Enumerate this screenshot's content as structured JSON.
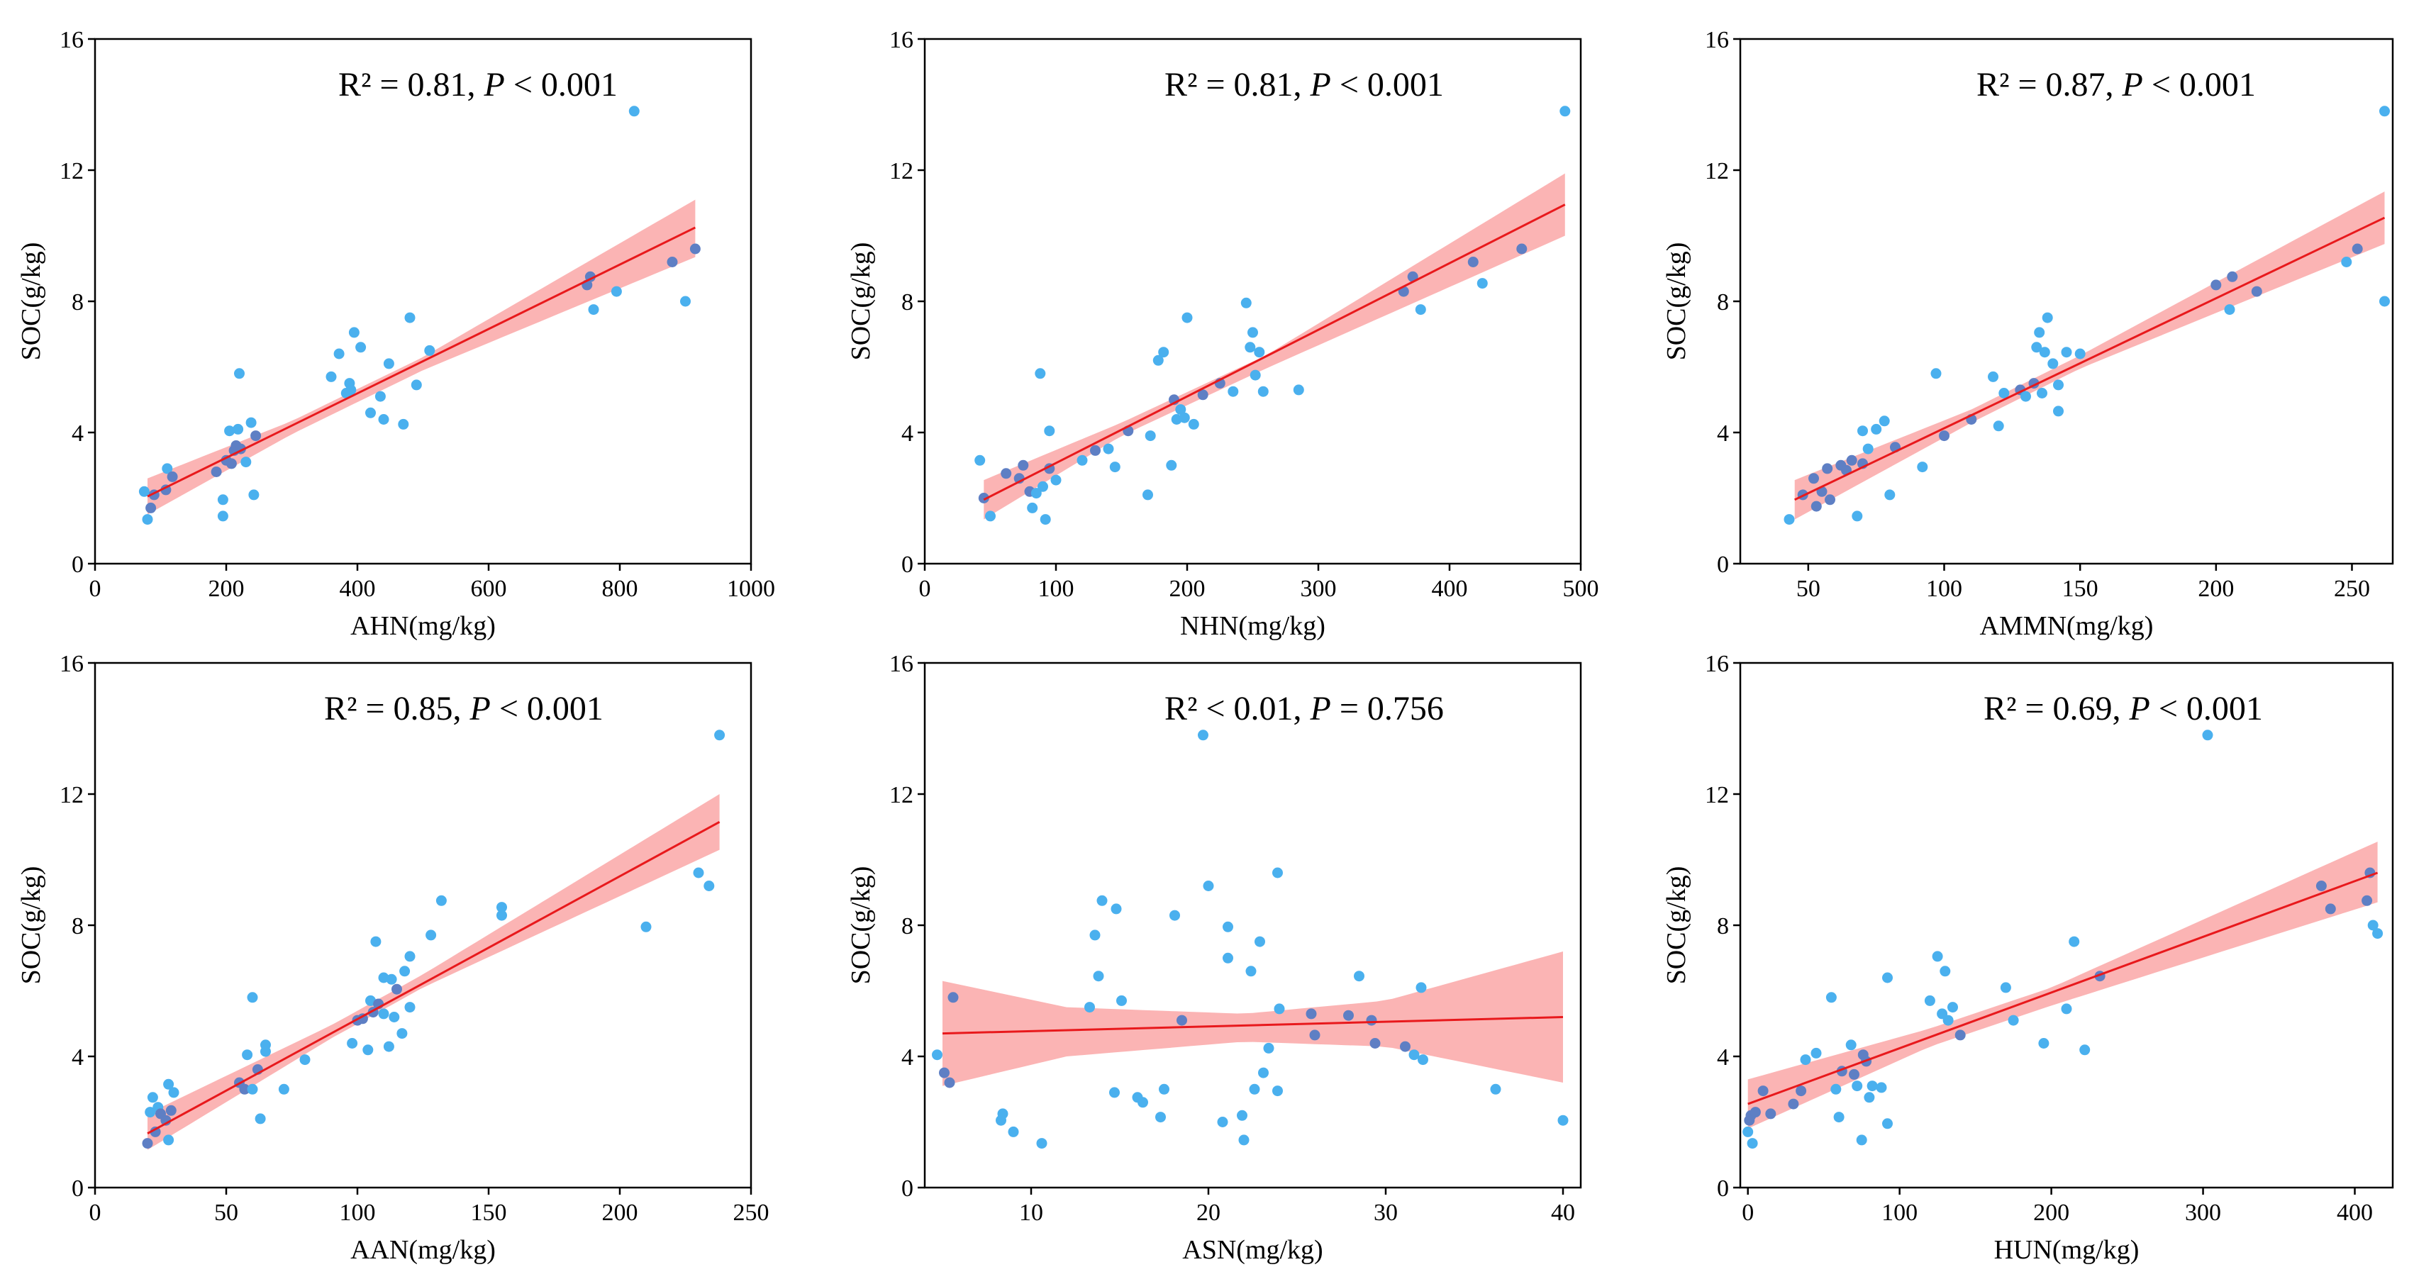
{
  "figure": {
    "y_label": "SOC(g/kg)",
    "y_ticks": [
      0,
      4,
      8,
      12,
      16
    ]
  },
  "colors": {
    "points": "#4ab0ee",
    "points_overlap": "#5e7fc4",
    "fit_line": "#e8191c",
    "confidence_band": "#fa9b9b"
  },
  "chart_data": [
    {
      "type": "scatter",
      "xlabel": "AHN(mg/kg)",
      "ylabel": "SOC(g/kg)",
      "xlim": [
        0,
        1000
      ],
      "ylim": [
        0,
        16
      ],
      "xticks": [
        0,
        200,
        400,
        600,
        800,
        1000
      ],
      "annotation": {
        "r2": "R² = 0.81, ",
        "p_label": "P",
        "p_value": " < 0.001"
      },
      "fit": {
        "x": [
          80,
          915
        ],
        "y": [
          2.05,
          10.25
        ]
      },
      "band": {
        "x": [
          80,
          300,
          500,
          915
        ],
        "lower": [
          1.5,
          3.95,
          5.9,
          9.35
        ],
        "upper": [
          2.6,
          4.35,
          6.3,
          11.1
        ]
      },
      "points": [
        [
          75,
          2.2
        ],
        [
          80,
          1.35
        ],
        [
          85,
          1.7
        ],
        [
          90,
          2.1
        ],
        [
          108,
          2.25
        ],
        [
          110,
          2.9
        ],
        [
          118,
          2.65
        ],
        [
          185,
          2.8
        ],
        [
          195,
          1.95
        ],
        [
          195,
          1.45
        ],
        [
          200,
          3.15
        ],
        [
          205,
          4.05
        ],
        [
          208,
          3.05
        ],
        [
          212,
          3.45
        ],
        [
          215,
          3.6
        ],
        [
          218,
          4.1
        ],
        [
          220,
          5.8
        ],
        [
          222,
          3.5
        ],
        [
          230,
          3.1
        ],
        [
          238,
          4.3
        ],
        [
          242,
          2.1
        ],
        [
          245,
          3.9
        ],
        [
          360,
          5.7
        ],
        [
          372,
          6.4
        ],
        [
          383,
          5.2
        ],
        [
          388,
          5.5
        ],
        [
          390,
          5.3
        ],
        [
          395,
          7.05
        ],
        [
          405,
          6.6
        ],
        [
          420,
          4.6
        ],
        [
          435,
          5.1
        ],
        [
          440,
          4.4
        ],
        [
          448,
          6.1
        ],
        [
          470,
          4.25
        ],
        [
          480,
          7.5
        ],
        [
          490,
          5.45
        ],
        [
          510,
          6.5
        ],
        [
          750,
          8.5
        ],
        [
          755,
          8.75
        ],
        [
          760,
          7.75
        ],
        [
          795,
          8.3
        ],
        [
          822,
          13.8
        ],
        [
          880,
          9.2
        ],
        [
          900,
          8.0
        ],
        [
          915,
          9.6
        ]
      ]
    },
    {
      "type": "scatter",
      "xlabel": "NHN(mg/kg)",
      "ylabel": "SOC(g/kg)",
      "xlim": [
        0,
        500
      ],
      "ylim": [
        0,
        16
      ],
      "xticks": [
        0,
        100,
        200,
        300,
        400,
        500
      ],
      "annotation": {
        "r2": "R² = 0.81, ",
        "p_label": "P",
        "p_value": " < 0.001"
      },
      "fit": {
        "x": [
          45,
          488
        ],
        "y": [
          1.95,
          10.95
        ]
      },
      "band": {
        "x": [
          45,
          150,
          260,
          488
        ],
        "lower": [
          1.35,
          3.9,
          5.95,
          10.0
        ],
        "upper": [
          2.55,
          4.3,
          6.35,
          11.9
        ]
      },
      "points": [
        [
          42,
          3.15
        ],
        [
          45,
          2.0
        ],
        [
          50,
          1.45
        ],
        [
          62,
          2.75
        ],
        [
          72,
          2.6
        ],
        [
          75,
          3.0
        ],
        [
          80,
          2.2
        ],
        [
          82,
          1.7
        ],
        [
          85,
          2.15
        ],
        [
          88,
          5.8
        ],
        [
          90,
          2.35
        ],
        [
          92,
          1.35
        ],
        [
          95,
          4.05
        ],
        [
          95,
          2.9
        ],
        [
          100,
          2.55
        ],
        [
          120,
          3.15
        ],
        [
          130,
          3.45
        ],
        [
          140,
          3.5
        ],
        [
          145,
          2.95
        ],
        [
          155,
          4.05
        ],
        [
          170,
          2.1
        ],
        [
          172,
          3.9
        ],
        [
          178,
          6.2
        ],
        [
          182,
          6.45
        ],
        [
          188,
          3.0
        ],
        [
          190,
          5.0
        ],
        [
          192,
          4.4
        ],
        [
          195,
          4.7
        ],
        [
          198,
          4.45
        ],
        [
          200,
          7.5
        ],
        [
          205,
          4.25
        ],
        [
          212,
          5.15
        ],
        [
          225,
          5.5
        ],
        [
          235,
          5.25
        ],
        [
          245,
          7.95
        ],
        [
          248,
          6.6
        ],
        [
          250,
          7.05
        ],
        [
          252,
          5.75
        ],
        [
          255,
          6.45
        ],
        [
          258,
          5.25
        ],
        [
          285,
          5.3
        ],
        [
          365,
          8.3
        ],
        [
          372,
          8.75
        ],
        [
          378,
          7.75
        ],
        [
          418,
          9.2
        ],
        [
          425,
          8.55
        ],
        [
          455,
          9.6
        ],
        [
          488,
          13.8
        ]
      ]
    },
    {
      "type": "scatter",
      "xlabel": "AMMN(mg/kg)",
      "ylabel": "SOC(g/kg)",
      "xlim": [
        25,
        265
      ],
      "ylim": [
        0,
        16
      ],
      "xticks": [
        50,
        100,
        150,
        200,
        250
      ],
      "annotation": {
        "r2": "R² = 0.87, ",
        "p_label": "P",
        "p_value": " < 0.001"
      },
      "fit": {
        "x": [
          45,
          262
        ],
        "y": [
          1.95,
          10.55
        ]
      },
      "band": {
        "x": [
          45,
          110,
          150,
          262
        ],
        "lower": [
          1.35,
          4.3,
          5.95,
          9.75
        ],
        "upper": [
          2.55,
          4.7,
          6.35,
          11.35
        ]
      },
      "points": [
        [
          43,
          1.35
        ],
        [
          48,
          2.1
        ],
        [
          52,
          2.6
        ],
        [
          53,
          1.75
        ],
        [
          55,
          2.2
        ],
        [
          57,
          2.9
        ],
        [
          58,
          1.95
        ],
        [
          62,
          3.0
        ],
        [
          64,
          2.85
        ],
        [
          66,
          3.15
        ],
        [
          68,
          1.45
        ],
        [
          70,
          3.05
        ],
        [
          70,
          4.05
        ],
        [
          72,
          3.5
        ],
        [
          75,
          4.1
        ],
        [
          78,
          4.35
        ],
        [
          80,
          2.1
        ],
        [
          82,
          3.55
        ],
        [
          92,
          2.95
        ],
        [
          97,
          5.8
        ],
        [
          100,
          3.9
        ],
        [
          110,
          4.4
        ],
        [
          118,
          5.7
        ],
        [
          120,
          4.2
        ],
        [
          122,
          5.2
        ],
        [
          128,
          5.3
        ],
        [
          130,
          5.1
        ],
        [
          133,
          5.5
        ],
        [
          134,
          6.6
        ],
        [
          135,
          7.05
        ],
        [
          136,
          5.2
        ],
        [
          137,
          6.45
        ],
        [
          138,
          7.5
        ],
        [
          140,
          6.1
        ],
        [
          142,
          4.65
        ],
        [
          142,
          5.45
        ],
        [
          145,
          6.45
        ],
        [
          150,
          6.4
        ],
        [
          200,
          8.5
        ],
        [
          205,
          7.75
        ],
        [
          206,
          8.75
        ],
        [
          215,
          8.3
        ],
        [
          248,
          9.2
        ],
        [
          252,
          9.6
        ],
        [
          262,
          13.8
        ],
        [
          262,
          8.0
        ]
      ]
    },
    {
      "type": "scatter",
      "xlabel": "AAN(mg/kg)",
      "ylabel": "SOC(g/kg)",
      "xlim": [
        0,
        250
      ],
      "ylim": [
        0,
        16
      ],
      "xticks": [
        0,
        50,
        100,
        150,
        200,
        250
      ],
      "annotation": {
        "r2": "R² = 0.85, ",
        "p_label": "P",
        "p_value": " < 0.001"
      },
      "fit": {
        "x": [
          20,
          238
        ],
        "y": [
          1.65,
          11.15
        ]
      },
      "band": {
        "x": [
          20,
          90,
          125,
          238
        ],
        "lower": [
          1.15,
          4.55,
          6.1,
          10.3
        ],
        "upper": [
          2.25,
          4.95,
          6.5,
          12.0
        ]
      },
      "points": [
        [
          20,
          1.35
        ],
        [
          21,
          2.3
        ],
        [
          22,
          2.75
        ],
        [
          23,
          1.7
        ],
        [
          24,
          2.45
        ],
        [
          25,
          2.25
        ],
        [
          27,
          2.05
        ],
        [
          28,
          1.45
        ],
        [
          28,
          3.15
        ],
        [
          29,
          2.35
        ],
        [
          30,
          2.9
        ],
        [
          55,
          3.2
        ],
        [
          57,
          3.0
        ],
        [
          58,
          4.05
        ],
        [
          60,
          5.8
        ],
        [
          60,
          3.0
        ],
        [
          62,
          3.6
        ],
        [
          63,
          2.1
        ],
        [
          65,
          4.15
        ],
        [
          65,
          4.35
        ],
        [
          72,
          3.0
        ],
        [
          80,
          3.9
        ],
        [
          98,
          4.4
        ],
        [
          100,
          5.1
        ],
        [
          102,
          5.15
        ],
        [
          104,
          4.2
        ],
        [
          105,
          5.7
        ],
        [
          106,
          5.35
        ],
        [
          107,
          7.5
        ],
        [
          108,
          5.6
        ],
        [
          110,
          6.4
        ],
        [
          110,
          5.3
        ],
        [
          112,
          4.3
        ],
        [
          113,
          6.35
        ],
        [
          114,
          5.2
        ],
        [
          115,
          6.05
        ],
        [
          117,
          4.7
        ],
        [
          118,
          6.6
        ],
        [
          120,
          5.5
        ],
        [
          120,
          7.05
        ],
        [
          128,
          7.7
        ],
        [
          132,
          8.75
        ],
        [
          155,
          8.3
        ],
        [
          155,
          8.55
        ],
        [
          210,
          7.95
        ],
        [
          230,
          9.6
        ],
        [
          234,
          9.2
        ],
        [
          238,
          13.8
        ]
      ]
    },
    {
      "type": "scatter",
      "xlabel": "ASN(mg/kg)",
      "ylabel": "SOC(g/kg)",
      "xlim": [
        4,
        41
      ],
      "ylim": [
        0,
        16
      ],
      "xticks": [
        10,
        20,
        30,
        40
      ],
      "annotation": {
        "r2": "R² < 0.01, ",
        "p_label": "P",
        "p_value": " = 0.756"
      },
      "fit": {
        "x": [
          5,
          40
        ],
        "y": [
          4.7,
          5.2
        ]
      },
      "band": {
        "x": [
          5,
          12,
          22,
          30,
          40
        ],
        "lower": [
          3.1,
          4.0,
          4.45,
          4.3,
          3.2
        ],
        "upper": [
          6.3,
          5.5,
          5.3,
          5.7,
          7.2
        ]
      },
      "points": [
        [
          4.7,
          4.05
        ],
        [
          5.1,
          3.5
        ],
        [
          5.4,
          3.2
        ],
        [
          5.6,
          5.8
        ],
        [
          8.3,
          2.05
        ],
        [
          8.4,
          2.25
        ],
        [
          9.0,
          1.7
        ],
        [
          10.6,
          1.35
        ],
        [
          13.3,
          5.5
        ],
        [
          13.6,
          7.7
        ],
        [
          13.8,
          6.45
        ],
        [
          14.0,
          8.75
        ],
        [
          14.7,
          2.9
        ],
        [
          14.8,
          8.5
        ],
        [
          15.1,
          5.7
        ],
        [
          16.0,
          2.75
        ],
        [
          16.3,
          2.6
        ],
        [
          17.3,
          2.15
        ],
        [
          17.5,
          3.0
        ],
        [
          18.1,
          8.3
        ],
        [
          18.5,
          5.1
        ],
        [
          19.7,
          13.8
        ],
        [
          20.0,
          9.2
        ],
        [
          20.8,
          2.0
        ],
        [
          21.1,
          7.95
        ],
        [
          21.1,
          7.0
        ],
        [
          21.9,
          2.2
        ],
        [
          22.0,
          1.45
        ],
        [
          22.4,
          6.6
        ],
        [
          22.6,
          3.0
        ],
        [
          22.9,
          7.5
        ],
        [
          23.1,
          3.5
        ],
        [
          23.4,
          4.25
        ],
        [
          23.9,
          9.6
        ],
        [
          24.0,
          5.45
        ],
        [
          23.9,
          2.95
        ],
        [
          25.8,
          5.3
        ],
        [
          26.0,
          4.65
        ],
        [
          27.9,
          5.25
        ],
        [
          28.5,
          6.45
        ],
        [
          29.2,
          5.1
        ],
        [
          29.4,
          4.4
        ],
        [
          31.1,
          4.3
        ],
        [
          31.6,
          4.05
        ],
        [
          32.0,
          6.1
        ],
        [
          32.1,
          3.9
        ],
        [
          36.2,
          3.0
        ],
        [
          40.0,
          2.05
        ]
      ]
    },
    {
      "type": "scatter",
      "xlabel": "HUN(mg/kg)",
      "ylabel": "SOC(g/kg)",
      "xlim": [
        -5,
        425
      ],
      "ylim": [
        0,
        16
      ],
      "xticks": [
        0,
        100,
        200,
        300,
        400
      ],
      "annotation": {
        "r2": "R² = 0.69, ",
        "p_label": "P",
        "p_value": " < 0.001"
      },
      "fit": {
        "x": [
          0,
          415
        ],
        "y": [
          2.55,
          9.6
        ]
      },
      "band": {
        "x": [
          0,
          120,
          200,
          415
        ],
        "lower": [
          1.8,
          4.3,
          5.55,
          8.7
        ],
        "upper": [
          3.3,
          4.85,
          6.1,
          10.55
        ]
      },
      "points": [
        [
          0,
          1.7
        ],
        [
          1,
          2.05
        ],
        [
          2,
          2.2
        ],
        [
          3,
          1.35
        ],
        [
          5,
          2.3
        ],
        [
          10,
          2.95
        ],
        [
          15,
          2.25
        ],
        [
          30,
          2.55
        ],
        [
          35,
          2.95
        ],
        [
          38,
          3.9
        ],
        [
          45,
          4.1
        ],
        [
          55,
          5.8
        ],
        [
          58,
          3.0
        ],
        [
          60,
          2.15
        ],
        [
          62,
          3.55
        ],
        [
          68,
          4.35
        ],
        [
          70,
          3.45
        ],
        [
          72,
          3.1
        ],
        [
          75,
          1.45
        ],
        [
          76,
          4.05
        ],
        [
          78,
          3.85
        ],
        [
          80,
          2.75
        ],
        [
          82,
          3.1
        ],
        [
          88,
          3.05
        ],
        [
          92,
          6.4
        ],
        [
          92,
          1.95
        ],
        [
          120,
          5.7
        ],
        [
          125,
          7.05
        ],
        [
          128,
          5.3
        ],
        [
          130,
          6.6
        ],
        [
          132,
          5.1
        ],
        [
          135,
          5.5
        ],
        [
          140,
          4.65
        ],
        [
          170,
          6.1
        ],
        [
          175,
          5.1
        ],
        [
          195,
          4.4
        ],
        [
          210,
          5.45
        ],
        [
          215,
          7.5
        ],
        [
          222,
          4.2
        ],
        [
          232,
          6.45
        ],
        [
          303,
          13.8
        ],
        [
          378,
          9.2
        ],
        [
          384,
          8.5
        ],
        [
          408,
          8.75
        ],
        [
          410,
          9.6
        ],
        [
          412,
          8.0
        ],
        [
          415,
          7.75
        ]
      ]
    }
  ]
}
